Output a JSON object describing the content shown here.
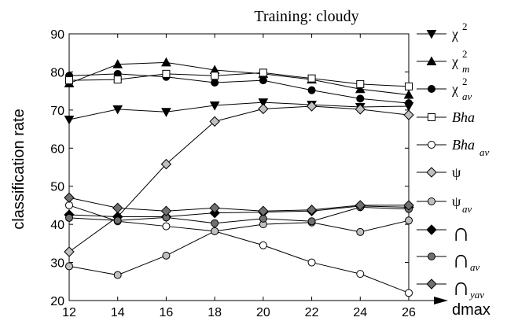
{
  "chart_data": {
    "type": "line",
    "title": "Training: cloudy",
    "xlabel": "dmax",
    "ylabel": "classification rate",
    "x": [
      12,
      14,
      16,
      18,
      20,
      22,
      24,
      26
    ],
    "xticks": [
      "12",
      "14",
      "16",
      "18",
      "20",
      "22",
      "24",
      "26"
    ],
    "xlim": [
      12,
      26
    ],
    "yticks": [
      "20",
      "30",
      "40",
      "50",
      "60",
      "70",
      "80",
      "90"
    ],
    "ylim": [
      20,
      90
    ],
    "grid": false,
    "legend_position": "right",
    "series": [
      {
        "name": "χ2",
        "legend": {
          "base": "χ",
          "sup": "2",
          "sub": ""
        },
        "marker": "triangle-down",
        "fill": "#000000",
        "values": [
          67.5,
          70.2,
          69.5,
          71.2,
          72.0,
          71.4,
          70.8,
          71.0
        ]
      },
      {
        "name": "χm2",
        "legend": {
          "base": "χ",
          "sup": "2",
          "sub": "m"
        },
        "marker": "triangle-up",
        "fill": "#000000",
        "values": [
          77.0,
          82.0,
          82.5,
          80.5,
          79.5,
          78.0,
          75.5,
          74.0
        ]
      },
      {
        "name": "χav2",
        "legend": {
          "base": "χ",
          "sup": "2",
          "sub": "av"
        },
        "marker": "circle",
        "fill": "#000000",
        "values": [
          79.0,
          79.5,
          78.7,
          77.2,
          77.8,
          75.2,
          73.0,
          71.8
        ]
      },
      {
        "name": "Bha",
        "legend": {
          "base": "Bha",
          "sup": "",
          "sub": ""
        },
        "marker": "square",
        "fill": "#ffffff",
        "values": [
          77.8,
          78.0,
          79.5,
          79.0,
          79.8,
          78.3,
          76.8,
          76.2
        ]
      },
      {
        "name": "Bhaav",
        "legend": {
          "base": "Bha",
          "sup": "",
          "sub": "av"
        },
        "marker": "circle",
        "fill": "#ffffff",
        "values": [
          45.0,
          40.8,
          39.5,
          38.2,
          34.5,
          30.0,
          27.0,
          22.0
        ]
      },
      {
        "name": "ψ",
        "legend": {
          "base": "ψ",
          "sup": "",
          "sub": ""
        },
        "marker": "diamond",
        "fill": "#c0c0c0",
        "values": [
          32.8,
          42.0,
          55.8,
          67.0,
          70.3,
          71.0,
          70.2,
          68.7
        ]
      },
      {
        "name": "ψav",
        "legend": {
          "base": "ψ",
          "sup": "",
          "sub": "av"
        },
        "marker": "circle",
        "fill": "#c0c0c0",
        "values": [
          29.0,
          26.7,
          31.8,
          38.2,
          40.0,
          40.5,
          38.0,
          41.0
        ]
      },
      {
        "name": "∩",
        "legend": {
          "base": "∩",
          "sup": "",
          "sub": ""
        },
        "marker": "diamond",
        "fill": "#000000",
        "values": [
          42.5,
          42.0,
          42.0,
          43.0,
          43.2,
          43.5,
          44.8,
          44.5
        ]
      },
      {
        "name": "∩av",
        "legend": {
          "base": "∩",
          "sup": "",
          "sub": "av"
        },
        "marker": "circle",
        "fill": "#707070",
        "values": [
          41.7,
          41.0,
          41.8,
          40.3,
          41.5,
          40.8,
          44.5,
          44.0
        ]
      },
      {
        "name": "∩yav",
        "legend": {
          "base": "∩",
          "sup": "",
          "sub": "yav"
        },
        "marker": "diamond",
        "fill": "#707070",
        "values": [
          47.0,
          44.3,
          43.5,
          44.3,
          43.5,
          43.8,
          45.0,
          45.0
        ]
      }
    ]
  }
}
